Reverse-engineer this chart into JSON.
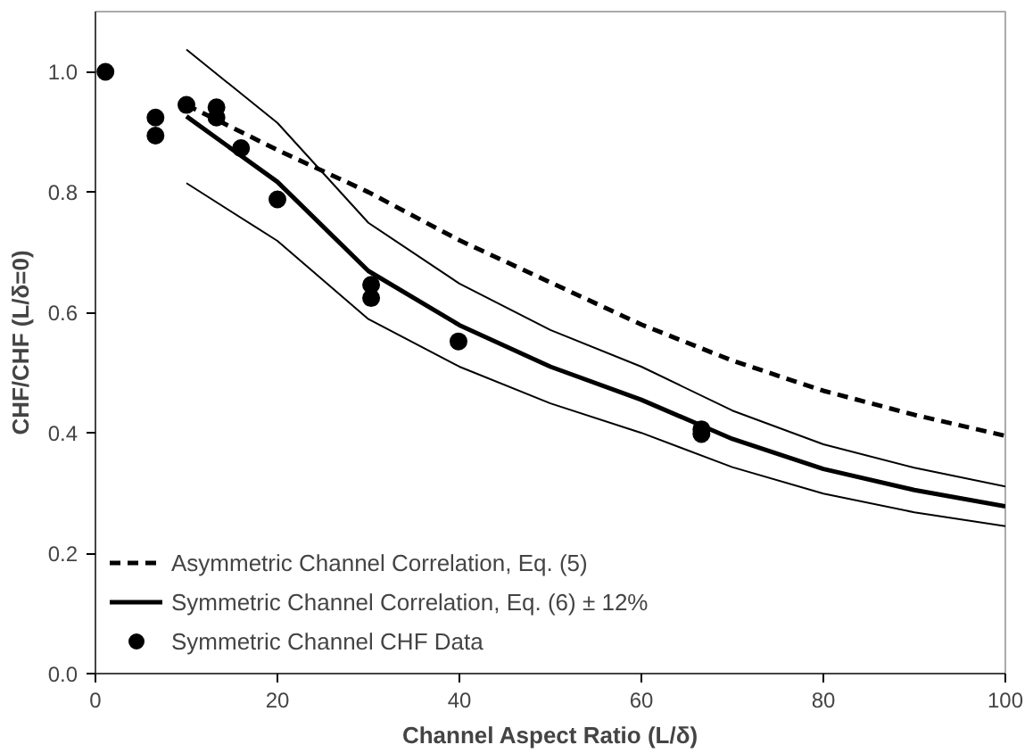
{
  "chart_data": {
    "type": "line",
    "xlabel": "Channel Aspect Ratio (L/δ)",
    "ylabel": "CHF/CHF (L/δ=0)",
    "xlim": [
      0,
      100
    ],
    "ylim": [
      0,
      1.1
    ],
    "xticks": [
      0,
      20,
      40,
      60,
      80,
      100
    ],
    "yticks": [
      {
        "value": 0,
        "label": "0.0"
      },
      {
        "value": 0.2,
        "label": "0.2"
      },
      {
        "value": 0.4,
        "label": "0.4"
      },
      {
        "value": 0.6,
        "label": "0.6"
      },
      {
        "value": 0.8,
        "label": "0.8"
      },
      {
        "value": 1,
        "label": "1.0"
      }
    ],
    "grid": false,
    "legend": "bottom left",
    "series": [
      {
        "name": "Asymmetric Channel Correlation, Eq. (5)",
        "line_style": "dashed",
        "color": "#000000",
        "x": [
          10,
          20,
          30,
          40,
          50,
          60,
          70,
          80,
          90,
          100
        ],
        "values": [
          0.945,
          0.87,
          0.8,
          0.72,
          0.65,
          0.58,
          0.52,
          0.47,
          0.43,
          0.395
        ]
      },
      {
        "name": "Symmetric Channel Correlation, Eq. (6) ± 12%",
        "line_style": "solid",
        "color": "#000000",
        "x": [
          10,
          20,
          30,
          40,
          50,
          60,
          70,
          80,
          90,
          100
        ],
        "values": [
          0.926,
          0.817,
          0.669,
          0.579,
          0.51,
          0.455,
          0.39,
          0.34,
          0.305,
          0.278
        ]
      },
      {
        "line_style": "solid",
        "color": "#000000",
        "x": [
          10,
          20,
          30,
          40,
          50,
          60,
          70,
          80,
          90,
          100
        ],
        "values": [
          1.037,
          0.915,
          0.749,
          0.648,
          0.571,
          0.51,
          0.437,
          0.381,
          0.342,
          0.311
        ]
      },
      {
        "line_style": "solid",
        "color": "#000000",
        "x": [
          10,
          20,
          30,
          40,
          50,
          60,
          70,
          80,
          90,
          100
        ],
        "values": [
          0.815,
          0.719,
          0.589,
          0.51,
          0.449,
          0.4,
          0.343,
          0.299,
          0.268,
          0.245
        ]
      },
      {
        "name": "Symmetric Channel CHF Data",
        "type": "scatter",
        "marker": "circle",
        "color": "#000000",
        "x": [
          1.1,
          6.6,
          6.6,
          10,
          13.3,
          13.3,
          16,
          20,
          30.3,
          30.3,
          39.9,
          66.6,
          66.6
        ],
        "values": [
          1.0,
          0.924,
          0.894,
          0.945,
          0.941,
          0.924,
          0.873,
          0.788,
          0.646,
          0.624,
          0.552,
          0.406,
          0.398
        ]
      }
    ]
  }
}
